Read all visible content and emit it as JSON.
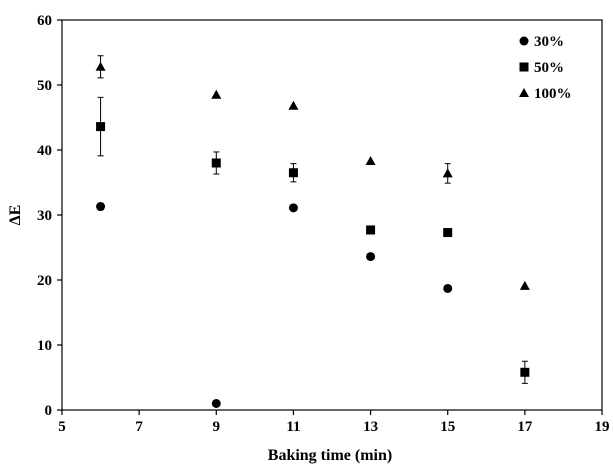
{
  "chart_data": {
    "type": "scatter",
    "title": "",
    "xlabel": "Baking time (min)",
    "ylabel": "ΔE",
    "xlim": [
      5,
      19
    ],
    "ylim": [
      0,
      60
    ],
    "xticks": [
      "5",
      "7",
      "9",
      "11",
      "13",
      "15",
      "17",
      "19"
    ],
    "yticks": [
      "0",
      "10",
      "20",
      "30",
      "40",
      "50",
      "60"
    ],
    "grid": false,
    "legend_position": "top-right",
    "series": [
      {
        "name": "30%",
        "marker": "circle",
        "color": "#000000",
        "points": [
          {
            "x": 6,
            "y": 31.3,
            "err": 0.5
          },
          {
            "x": 9,
            "y": 1.0,
            "err": 0
          },
          {
            "x": 11,
            "y": 31.1,
            "err": 0
          },
          {
            "x": 13,
            "y": 23.6,
            "err": 0
          },
          {
            "x": 15,
            "y": 18.7,
            "err": 0
          }
        ]
      },
      {
        "name": "50%",
        "marker": "square",
        "color": "#000000",
        "points": [
          {
            "x": 6,
            "y": 43.6,
            "err": 4.5
          },
          {
            "x": 9,
            "y": 38.0,
            "err": 1.7
          },
          {
            "x": 11,
            "y": 36.5,
            "err": 1.4
          },
          {
            "x": 13,
            "y": 27.7,
            "err": 0.6
          },
          {
            "x": 15,
            "y": 27.3,
            "err": 0
          },
          {
            "x": 17,
            "y": 5.8,
            "err": 1.7
          }
        ]
      },
      {
        "name": "100%",
        "marker": "triangle",
        "color": "#000000",
        "points": [
          {
            "x": 6,
            "y": 52.8,
            "err": 1.7
          },
          {
            "x": 9,
            "y": 48.5,
            "err": 0
          },
          {
            "x": 11,
            "y": 46.8,
            "err": 0
          },
          {
            "x": 13,
            "y": 38.3,
            "err": 0
          },
          {
            "x": 15,
            "y": 36.4,
            "err": 1.5
          },
          {
            "x": 17,
            "y": 19.1,
            "err": 0
          }
        ]
      }
    ]
  }
}
